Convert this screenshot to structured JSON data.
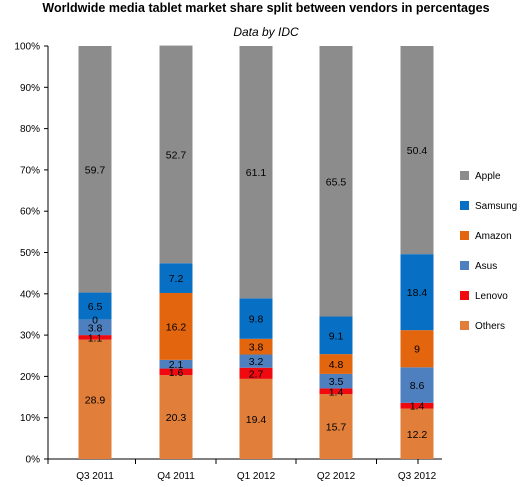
{
  "chart_data": {
    "type": "bar",
    "stacked": true,
    "title": "Worldwide media tablet market share split between vendors in percentages",
    "subtitle": "Data by IDC",
    "categories": [
      "Q3 2011",
      "Q4 2011",
      "Q1 2012",
      "Q2 2012",
      "Q3 2012"
    ],
    "ylim": [
      0,
      100
    ],
    "yticks": [
      "0%",
      "10%",
      "20%",
      "30%",
      "40%",
      "50%",
      "60%",
      "70%",
      "80%",
      "90%",
      "100%"
    ],
    "grid": false,
    "legend_position": "right",
    "series": [
      {
        "name": "Others",
        "color": "#e07e3a",
        "values": [
          28.9,
          20.3,
          19.4,
          15.7,
          12.2
        ],
        "labels": [
          "28.9",
          "20.3",
          "19.4",
          "15.7",
          "12.2"
        ]
      },
      {
        "name": "Lenovo",
        "color": "#f00a10",
        "values": [
          1.1,
          1.6,
          2.7,
          1.4,
          1.4
        ],
        "labels": [
          "1.1",
          "1.6",
          "2.7",
          "1.4",
          "1.4"
        ]
      },
      {
        "name": "Asus",
        "color": "#4e7fbe",
        "values": [
          3.8,
          2.1,
          3.2,
          3.5,
          8.6
        ],
        "labels": [
          "3.8",
          "2.1",
          "3.2",
          "3.5",
          "8.6"
        ]
      },
      {
        "name": "Amazon",
        "color": "#e3650e",
        "values": [
          0,
          16.2,
          3.8,
          4.8,
          9
        ],
        "labels": [
          "0",
          "16.2",
          "3.8",
          "4.8",
          "9"
        ]
      },
      {
        "name": "Samsung",
        "color": "#0870c4",
        "values": [
          6.5,
          7.2,
          9.8,
          9.1,
          18.4
        ],
        "labels": [
          "6.5",
          "7.2",
          "9.8",
          "9.1",
          "18.4"
        ]
      },
      {
        "name": "Apple",
        "color": "#8c8c8c",
        "values": [
          59.7,
          52.7,
          61.1,
          65.5,
          50.4
        ],
        "labels": [
          "59.7",
          "52.7",
          "61.1",
          "65.5",
          "50.4"
        ]
      }
    ],
    "legend_order": [
      "Apple",
      "Samsung",
      "Amazon",
      "Asus",
      "Lenovo",
      "Others"
    ]
  }
}
